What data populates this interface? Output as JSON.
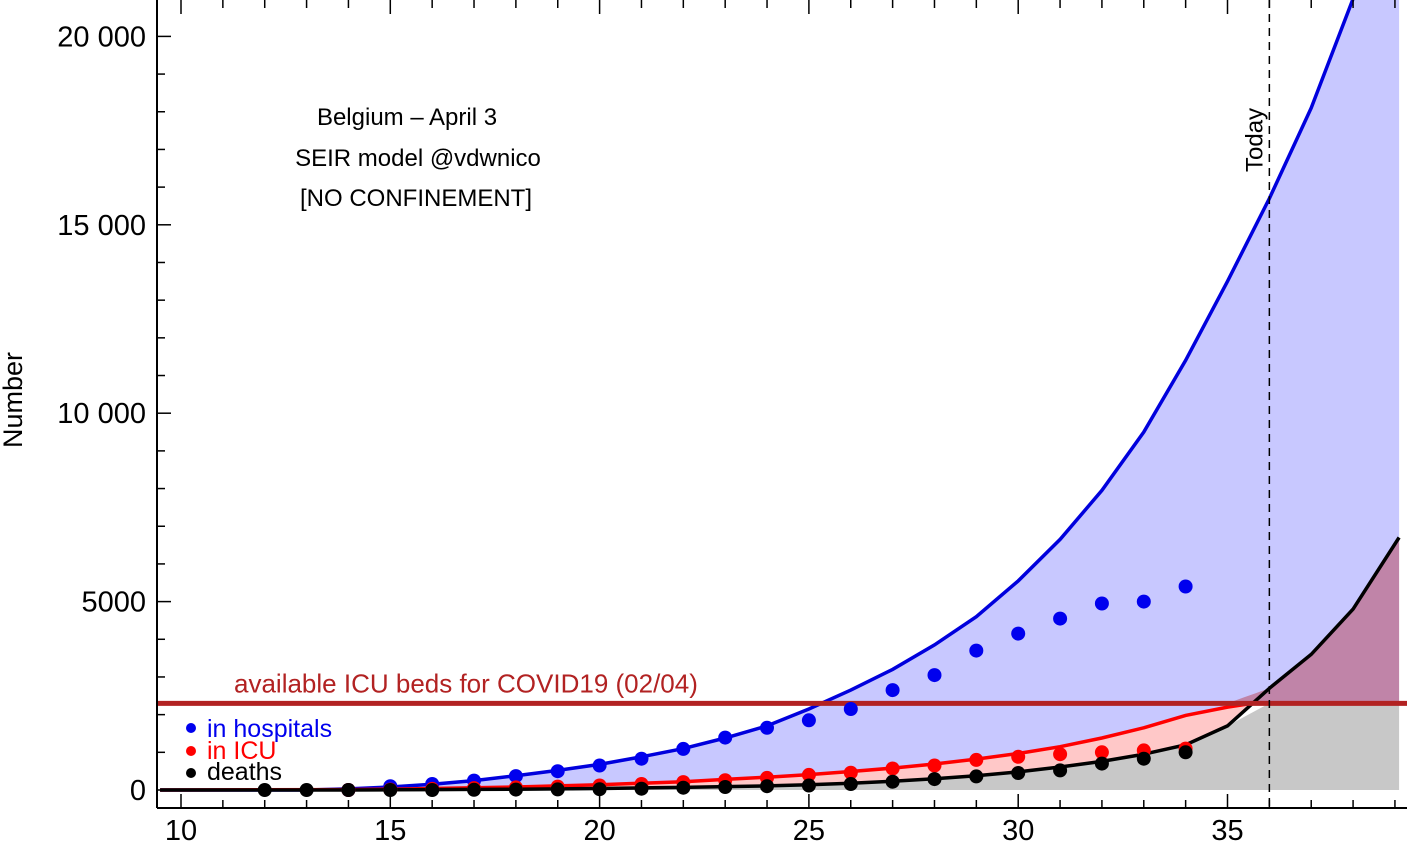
{
  "chart_data": {
    "type": "line",
    "title": "",
    "xlabel": "",
    "ylabel": "Number",
    "xlim": [
      9.5,
      39.1
    ],
    "ylim": [
      -500,
      21000
    ],
    "x_ticks": [
      10,
      15,
      20,
      25,
      30,
      35
    ],
    "x_tick_labels": [
      "10",
      "15",
      "20",
      "25",
      "30",
      "35"
    ],
    "y_ticks": [
      0,
      5000,
      10000,
      15000,
      20000
    ],
    "y_tick_labels": [
      "0",
      "5000",
      "10 000",
      "15 000",
      "20 000"
    ],
    "grid": false,
    "annotation_lines": [
      "Belgium – April 3",
      "SEIR model @vdwnico",
      "[NO CONFINEMENT]"
    ],
    "today": {
      "x": 36,
      "label": "Today"
    },
    "threshold": {
      "y": 2300,
      "label": "available ICU beds for COVID19 (02/04)",
      "color": "#b22222"
    },
    "legend_position": "bottom-left",
    "model_series": [
      {
        "name": "in hospitals",
        "color": "#0000dd",
        "fill": "#c8c8ff",
        "x": [
          9.5,
          13,
          14,
          15,
          16,
          17,
          18,
          19,
          20,
          21,
          22,
          23,
          24,
          25,
          26,
          27,
          28,
          29,
          30,
          31,
          32,
          33,
          34,
          35,
          36,
          37,
          38,
          39.1
        ],
        "y": [
          0,
          0,
          30,
          80,
          150,
          250,
          380,
          520,
          680,
          880,
          1100,
          1380,
          1700,
          2150,
          2650,
          3200,
          3850,
          4600,
          5550,
          6650,
          7950,
          9500,
          11400,
          13500,
          15700,
          18100,
          21000,
          24500
        ]
      },
      {
        "name": "in ICU",
        "color": "#ff0000",
        "fill": "#ffc8c8",
        "x": [
          9.5,
          14,
          15,
          16,
          17,
          18,
          19,
          20,
          21,
          22,
          23,
          24,
          25,
          26,
          27,
          28,
          29,
          30,
          31,
          32,
          33,
          34,
          35,
          35.6
        ],
        "y": [
          0,
          10,
          20,
          40,
          60,
          80,
          110,
          140,
          180,
          220,
          280,
          340,
          410,
          490,
          580,
          690,
          820,
          970,
          1150,
          1380,
          1650,
          1980,
          2200,
          2300
        ]
      },
      {
        "name": "deaths",
        "color": "#000000",
        "fill": "#c8c8c8",
        "x": [
          9.5,
          14,
          15,
          16,
          17,
          18,
          19,
          20,
          21,
          22,
          23,
          24,
          25,
          26,
          27,
          28,
          29,
          30,
          31,
          32,
          33,
          34,
          35,
          36,
          37,
          38,
          39.1
        ],
        "y": [
          0,
          0,
          5,
          10,
          15,
          20,
          30,
          40,
          55,
          70,
          90,
          110,
          140,
          180,
          230,
          300,
          380,
          480,
          610,
          760,
          950,
          1200,
          1700,
          2700,
          3600,
          4800,
          6700
        ]
      }
    ],
    "observed_series": [
      {
        "name": "in hospitals",
        "color": "#0000ee",
        "x": [
          14,
          15,
          16,
          17,
          18,
          19,
          20,
          21,
          22,
          23,
          24,
          25,
          26,
          27,
          28,
          29,
          30,
          31,
          32,
          33,
          34
        ],
        "y": [
          0,
          100,
          160,
          250,
          370,
          500,
          650,
          830,
          1090,
          1390,
          1650,
          1850,
          2150,
          2650,
          3050,
          3700,
          4150,
          4550,
          4950,
          5000,
          5400
        ]
      },
      {
        "name": "in ICU",
        "color": "#ff0000",
        "x": [
          14,
          15,
          16,
          17,
          18,
          19,
          20,
          21,
          22,
          23,
          24,
          25,
          26,
          27,
          28,
          29,
          30,
          31,
          32,
          33,
          34
        ],
        "y": [
          0,
          10,
          30,
          50,
          70,
          90,
          120,
          160,
          210,
          260,
          320,
          400,
          460,
          570,
          650,
          800,
          880,
          950,
          1000,
          1050,
          1100
        ]
      },
      {
        "name": "deaths",
        "color": "#000000",
        "x": [
          12,
          13,
          14,
          15,
          16,
          17,
          18,
          19,
          20,
          21,
          22,
          23,
          24,
          25,
          26,
          27,
          28,
          29,
          30,
          31,
          32,
          33,
          34
        ],
        "y": [
          0,
          0,
          0,
          0,
          0,
          5,
          10,
          15,
          20,
          35,
          60,
          80,
          100,
          120,
          160,
          220,
          290,
          360,
          450,
          520,
          700,
          830,
          1000
        ]
      }
    ]
  }
}
